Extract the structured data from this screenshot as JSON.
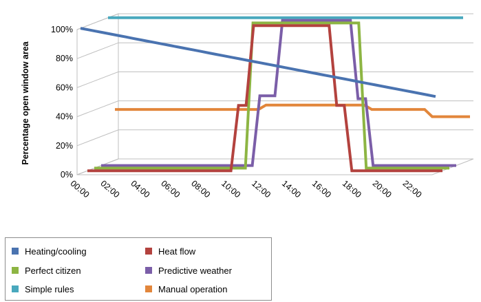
{
  "chart_data": {
    "type": "line",
    "subtype": "3d-line",
    "ylabel": "Percentage open window area",
    "x": [
      "00:00",
      "00:30",
      "01:00",
      "01:30",
      "02:00",
      "02:30",
      "03:00",
      "03:30",
      "04:00",
      "04:30",
      "05:00",
      "05:30",
      "06:00",
      "06:30",
      "07:00",
      "07:30",
      "08:00",
      "08:30",
      "09:00",
      "09:30",
      "10:00",
      "10:30",
      "11:00",
      "11:30",
      "12:00",
      "12:30",
      "13:00",
      "13:30",
      "14:00",
      "14:30",
      "15:00",
      "15:30",
      "16:00",
      "16:30",
      "17:00",
      "17:30",
      "18:00",
      "18:30",
      "19:00",
      "19:30",
      "20:00",
      "20:30",
      "21:00",
      "21:30",
      "22:00",
      "22:30",
      "23:00",
      "23:30"
    ],
    "x_tick_labels": [
      "00:00",
      "02:00",
      "04:00",
      "06:00",
      "08:00",
      "10:00",
      "12:00",
      "14:00",
      "16:00",
      "18:00",
      "20:00",
      "22:00"
    ],
    "y_tick_labels": [
      "0%",
      "20%",
      "40%",
      "60%",
      "80%",
      "100%"
    ],
    "ylim": [
      0,
      100
    ],
    "grid": true,
    "legend_position": "bottom-left",
    "series": [
      {
        "name": "Heating/cooling",
        "color": "#4a73b0",
        "values": [
          100,
          99,
          98,
          97,
          96,
          95,
          94,
          93,
          92,
          91,
          90,
          89,
          88,
          87,
          86,
          85,
          84,
          83,
          82,
          81,
          80,
          79,
          78,
          77,
          76,
          75,
          74,
          73,
          72,
          71,
          70,
          69,
          68,
          67,
          66,
          65,
          64,
          63,
          62,
          61,
          60,
          59,
          58,
          57,
          56,
          55,
          54,
          53
        ]
      },
      {
        "name": "Heat flow",
        "color": "#b3423e",
        "values": [
          0,
          0,
          0,
          0,
          0,
          0,
          0,
          0,
          0,
          0,
          0,
          0,
          0,
          0,
          0,
          0,
          0,
          0,
          0,
          0,
          45,
          45,
          100,
          100,
          100,
          100,
          100,
          100,
          100,
          100,
          100,
          100,
          100,
          45,
          45,
          0,
          0,
          0,
          0,
          0,
          0,
          0,
          0,
          0,
          0,
          0,
          0,
          0
        ]
      },
      {
        "name": "Perfect citizen",
        "color": "#8db543",
        "values": [
          0,
          0,
          0,
          0,
          0,
          0,
          0,
          0,
          0,
          0,
          0,
          0,
          0,
          0,
          0,
          0,
          0,
          0,
          0,
          0,
          0,
          100,
          100,
          100,
          100,
          100,
          100,
          100,
          100,
          100,
          100,
          100,
          100,
          100,
          100,
          100,
          0,
          0,
          0,
          0,
          0,
          0,
          0,
          0,
          0,
          0,
          0,
          0
        ]
      },
      {
        "name": "Predictive weather",
        "color": "#7b5ea8",
        "values": [
          0,
          0,
          0,
          0,
          0,
          0,
          0,
          0,
          0,
          0,
          0,
          0,
          0,
          0,
          0,
          0,
          0,
          0,
          0,
          0,
          0,
          48,
          48,
          48,
          100,
          100,
          100,
          100,
          100,
          100,
          100,
          100,
          100,
          100,
          46,
          46,
          0,
          0,
          0,
          0,
          0,
          0,
          0,
          0,
          0,
          0,
          0,
          0
        ]
      },
      {
        "name": "Simple rules",
        "color": "#49a8bd",
        "values": [
          100,
          100,
          100,
          100,
          100,
          100,
          100,
          100,
          100,
          100,
          100,
          100,
          100,
          100,
          100,
          100,
          100,
          100,
          100,
          100,
          100,
          100,
          100,
          100,
          100,
          100,
          100,
          100,
          100,
          100,
          100,
          100,
          100,
          100,
          100,
          100,
          100,
          100,
          100,
          100,
          100,
          100,
          100,
          100,
          100,
          100,
          100,
          100
        ]
      },
      {
        "name": "Manual operation",
        "color": "#e2863b",
        "values": [
          35,
          35,
          35,
          35,
          35,
          35,
          35,
          35,
          35,
          35,
          35,
          35,
          35,
          35,
          35,
          35,
          35,
          35,
          35,
          35,
          38,
          38,
          38,
          38,
          38,
          38,
          38,
          38,
          38,
          38,
          38,
          38,
          38,
          38,
          35,
          35,
          35,
          35,
          35,
          35,
          35,
          35,
          30,
          30,
          30,
          30,
          30,
          30
        ]
      }
    ]
  }
}
